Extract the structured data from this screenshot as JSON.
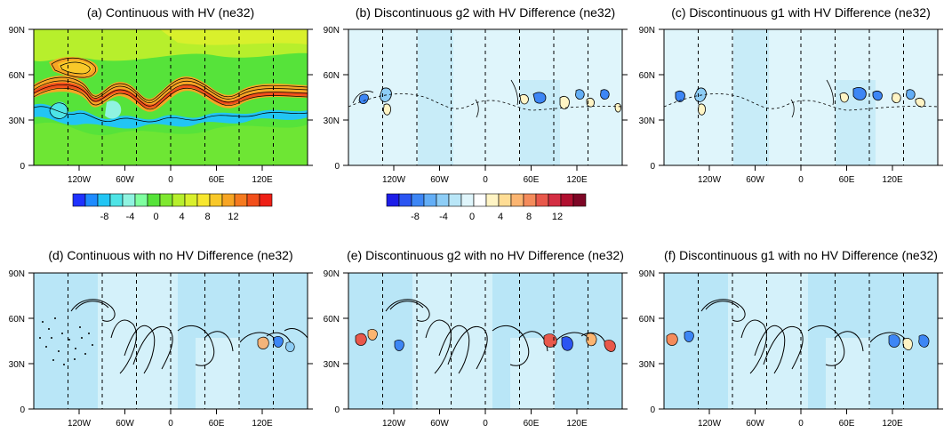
{
  "chart_data": [
    {
      "type": "heatmap",
      "title": "(a) Continuous with HV (ne32)",
      "colorbar": {
        "levels": [
          "-8",
          "-4",
          "0",
          "4",
          "8",
          "12"
        ],
        "colors": [
          "#1f32ff",
          "#1e8bff",
          "#22c5f4",
          "#4ee4e6",
          "#8ff3e0",
          "#7fffa0",
          "#56e33a",
          "#7fe830",
          "#b7ef2c",
          "#d9f02c",
          "#f7e72f",
          "#f8c829",
          "#f7a524",
          "#f57a1f",
          "#f24f1b",
          "#ee1f16"
        ]
      },
      "field": "full",
      "zero_lat_indicated": true
    },
    {
      "type": "heatmap",
      "title": "(b) Discontinuous g2 with HV Difference (ne32)",
      "colorbar": {
        "levels": [
          "-8",
          "-4",
          "0",
          "4",
          "8",
          "12"
        ],
        "colors": [
          "#1d1de8",
          "#2b55f2",
          "#3d86f5",
          "#63aef6",
          "#8dcdf6",
          "#b9e6f7",
          "#dff5fb",
          "#ffffff",
          "#fff4c4",
          "#ffdd95",
          "#fbb571",
          "#f48b5b",
          "#e8584b",
          "#d42e43",
          "#b11030",
          "#7e0626"
        ]
      },
      "field": "diff_g2_hv"
    },
    {
      "type": "heatmap",
      "title": "(c) Discontinuous g1 with HV Difference (ne32)",
      "field": "diff_g1_hv"
    },
    {
      "type": "heatmap",
      "title": "(d) Continuous with no HV Difference (ne32)",
      "field": "diff_cont_nohv"
    },
    {
      "type": "heatmap",
      "title": "(e) Discontinuous g2 with no HV Difference (ne32)",
      "field": "diff_g2_nohv"
    },
    {
      "type": "heatmap",
      "title": "(f) Discontinuous g1 with no HV Difference (ne32)",
      "field": "diff_g1_nohv"
    }
  ],
  "axes": {
    "y_ticks": [
      "0",
      "30N",
      "60N",
      "90N"
    ],
    "y_values": [
      0,
      30,
      60,
      90
    ],
    "x_ticks": [
      "120W",
      "60W",
      "0",
      "60E",
      "120E"
    ],
    "x_values": [
      -120,
      -60,
      0,
      60,
      120
    ],
    "x_range": [
      -180,
      180
    ],
    "y_range": [
      0,
      90
    ]
  },
  "grid_lines_lon": [
    -135,
    -90,
    -45,
    0,
    45,
    90,
    135
  ]
}
